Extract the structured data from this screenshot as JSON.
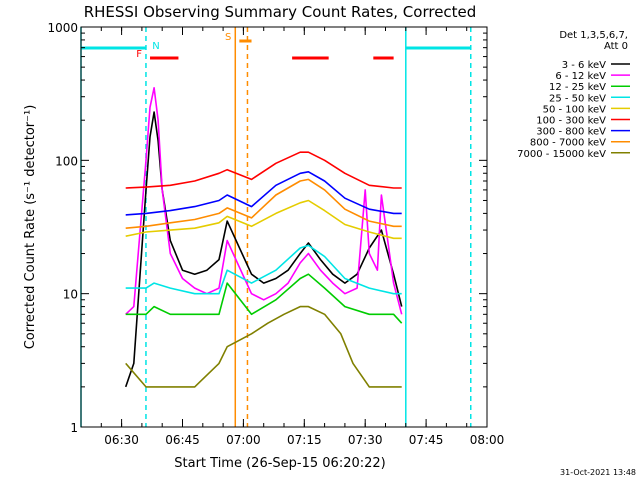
{
  "chart_data": {
    "type": "line",
    "title": "RHESSI Observing Summary Count Rates, Corrected",
    "ylabel": "Corrected Count Rate (s⁻¹ detector⁻¹)",
    "xlabel": "Start Time (26-Sep-15 06:20:22)",
    "y_scale": "log",
    "ylim": [
      1,
      1000
    ],
    "xlim": [
      "06:20",
      "08:00"
    ],
    "x_ticks": [
      "06:30",
      "06:45",
      "07:00",
      "07:15",
      "07:30",
      "07:45",
      "08:00"
    ],
    "y_ticks": [
      "1",
      "10",
      "100",
      "1000"
    ],
    "legend_header": [
      "Det 1,3,5,6,7,",
      "Att 0"
    ],
    "legend_position": "right",
    "footer_date": "31-Oct-2021 13:48",
    "series": [
      {
        "name": "3 - 6 keV",
        "color": "#000000",
        "x": [
          "06:31",
          "06:33",
          "06:36",
          "06:37",
          "06:38",
          "06:39",
          "06:40",
          "06:42",
          "06:45",
          "06:48",
          "06:51",
          "06:54",
          "06:56",
          "07:02",
          "07:05",
          "07:08",
          "07:11",
          "07:14",
          "07:16",
          "07:19",
          "07:22",
          "07:25",
          "07:28",
          "07:31",
          "07:34",
          "07:37",
          "07:39"
        ],
        "y": [
          2,
          3,
          60,
          150,
          230,
          140,
          60,
          25,
          15,
          14,
          15,
          18,
          35,
          14,
          12,
          13,
          15,
          20,
          24,
          18,
          14,
          12,
          14,
          22,
          30,
          14,
          8
        ]
      },
      {
        "name": "6 - 12 keV",
        "color": "#ff00ff",
        "x": [
          "06:31",
          "06:33",
          "06:36",
          "06:37",
          "06:38",
          "06:39",
          "06:40",
          "06:42",
          "06:45",
          "06:48",
          "06:51",
          "06:54",
          "06:56",
          "07:02",
          "07:05",
          "07:08",
          "07:11",
          "07:14",
          "07:16",
          "07:19",
          "07:22",
          "07:25",
          "07:28",
          "07:30",
          "07:31",
          "07:33",
          "07:34",
          "07:37",
          "07:39"
        ],
        "y": [
          7,
          8,
          100,
          250,
          350,
          200,
          60,
          20,
          13,
          11,
          10,
          11,
          25,
          10,
          9,
          10,
          12,
          17,
          20,
          15,
          12,
          10,
          11,
          60,
          20,
          15,
          55,
          12,
          7
        ]
      },
      {
        "name": "12 - 25 keV",
        "color": "#00cc00",
        "x": [
          "06:31",
          "06:36",
          "06:38",
          "06:42",
          "06:48",
          "06:54",
          "06:56",
          "07:02",
          "07:08",
          "07:14",
          "07:16",
          "07:20",
          "07:25",
          "07:31",
          "07:37",
          "07:39"
        ],
        "y": [
          7,
          7,
          8,
          7,
          7,
          7,
          12,
          7,
          9,
          13,
          14,
          11,
          8,
          7,
          7,
          6
        ]
      },
      {
        "name": "25 - 50 keV",
        "color": "#00e5e5",
        "x": [
          "06:31",
          "06:36",
          "06:38",
          "06:42",
          "06:48",
          "06:54",
          "06:56",
          "07:02",
          "07:08",
          "07:14",
          "07:16",
          "07:20",
          "07:25",
          "07:31",
          "07:37",
          "07:39"
        ],
        "y": [
          11,
          11,
          12,
          11,
          10,
          10,
          15,
          12,
          15,
          22,
          23,
          19,
          13,
          11,
          10,
          10
        ]
      },
      {
        "name": "50 - 100 keV",
        "color": "#e5cc00",
        "x": [
          "06:31",
          "06:36",
          "06:42",
          "06:48",
          "06:54",
          "06:56",
          "07:02",
          "07:08",
          "07:14",
          "07:16",
          "07:20",
          "07:25",
          "07:31",
          "07:37",
          "07:39"
        ],
        "y": [
          27,
          29,
          30,
          31,
          34,
          38,
          32,
          40,
          48,
          50,
          42,
          33,
          29,
          26,
          26
        ]
      },
      {
        "name": "100 - 300 keV",
        "color": "#ff0000",
        "x": [
          "06:31",
          "06:36",
          "06:42",
          "06:48",
          "06:54",
          "06:56",
          "07:02",
          "07:08",
          "07:14",
          "07:16",
          "07:20",
          "07:25",
          "07:31",
          "07:37",
          "07:39"
        ],
        "y": [
          62,
          63,
          65,
          70,
          80,
          85,
          72,
          95,
          115,
          115,
          100,
          80,
          65,
          62,
          62
        ]
      },
      {
        "name": "300 - 800 keV",
        "color": "#0000ff",
        "x": [
          "06:31",
          "06:36",
          "06:42",
          "06:48",
          "06:54",
          "06:56",
          "07:02",
          "07:08",
          "07:14",
          "07:16",
          "07:20",
          "07:25",
          "07:31",
          "07:37",
          "07:39"
        ],
        "y": [
          39,
          40,
          42,
          45,
          50,
          55,
          45,
          65,
          80,
          82,
          70,
          52,
          43,
          40,
          40
        ]
      },
      {
        "name": "800 - 7000 keV",
        "color": "#ff8c00",
        "x": [
          "06:31",
          "06:36",
          "06:42",
          "06:48",
          "06:54",
          "06:56",
          "07:02",
          "07:08",
          "07:14",
          "07:16",
          "07:20",
          "07:25",
          "07:31",
          "07:37",
          "07:39"
        ],
        "y": [
          31,
          32,
          34,
          36,
          40,
          44,
          37,
          55,
          70,
          72,
          60,
          43,
          35,
          32,
          32
        ]
      },
      {
        "name": "7000 - 15000 keV",
        "color": "#808000",
        "x": [
          "06:31",
          "06:36",
          "06:42",
          "06:48",
          "06:54",
          "06:56",
          "07:02",
          "07:06",
          "07:10",
          "07:14",
          "07:16",
          "07:20",
          "07:24",
          "07:27",
          "07:31",
          "07:37",
          "07:39"
        ],
        "y": [
          3,
          2,
          2,
          2,
          3,
          4,
          5,
          6,
          7,
          8,
          8,
          7,
          5,
          3,
          2,
          2,
          2
        ]
      }
    ],
    "flags": [
      {
        "label": "F",
        "color": "#ff0000",
        "segments": [
          [
            "06:37",
            "06:44"
          ],
          [
            "07:12",
            "07:21"
          ],
          [
            "07:32",
            "07:37"
          ]
        ]
      },
      {
        "label": "N",
        "color": "#00e5e5",
        "segments": [
          [
            "06:20",
            "06:36"
          ],
          [
            "07:40",
            "07:56"
          ]
        ]
      },
      {
        "label": "S",
        "color": "#ff8c00",
        "segments": [
          [
            "06:59",
            "07:02"
          ]
        ]
      }
    ],
    "vertical_lines": [
      {
        "time": "06:20",
        "color": "#00e5e5",
        "style": "solid"
      },
      {
        "time": "06:36",
        "color": "#00e5e5",
        "style": "dashed"
      },
      {
        "time": "06:58",
        "color": "#ff8c00",
        "style": "solid"
      },
      {
        "time": "07:01",
        "color": "#ff8c00",
        "style": "dashed"
      },
      {
        "time": "07:40",
        "color": "#00e5e5",
        "style": "solid"
      },
      {
        "time": "07:56",
        "color": "#00e5e5",
        "style": "dashed"
      }
    ]
  }
}
